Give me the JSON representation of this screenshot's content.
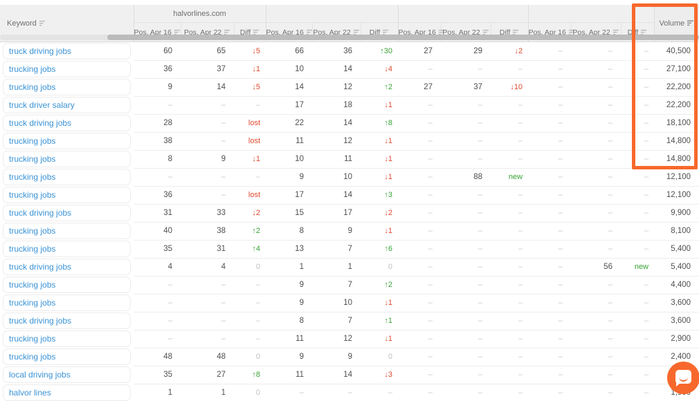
{
  "header": {
    "keyword_label": "Keyword",
    "volume_label": "Volume",
    "group_domains": [
      "halvorlines.com",
      "",
      "",
      ""
    ],
    "sub_columns": [
      "Pos. Apr 16",
      "Pos. Apr 22",
      "Diff"
    ]
  },
  "rows": [
    {
      "keyword": "truck driving jobs",
      "cells": [
        "60",
        "65",
        "↓5",
        "66",
        "36",
        "↑30",
        "27",
        "29",
        "↓2",
        "–",
        "–",
        "–"
      ],
      "volume": "40,500"
    },
    {
      "keyword": "trucking jobs",
      "cells": [
        "36",
        "37",
        "↓1",
        "10",
        "14",
        "↓4",
        "–",
        "–",
        "–",
        "–",
        "–",
        "–"
      ],
      "volume": "27,100"
    },
    {
      "keyword": "trucking jobs",
      "cells": [
        "9",
        "14",
        "↓5",
        "14",
        "12",
        "↑2",
        "27",
        "37",
        "↓10",
        "–",
        "–",
        "–"
      ],
      "volume": "22,200"
    },
    {
      "keyword": "truck driver salary",
      "cells": [
        "–",
        "–",
        "–",
        "17",
        "18",
        "↓1",
        "–",
        "–",
        "–",
        "–",
        "–",
        "–"
      ],
      "volume": "22,200"
    },
    {
      "keyword": "truck driving jobs",
      "cells": [
        "28",
        "–",
        "lost",
        "22",
        "14",
        "↑8",
        "–",
        "–",
        "–",
        "–",
        "–",
        "–"
      ],
      "volume": "18,100"
    },
    {
      "keyword": "trucking jobs",
      "cells": [
        "38",
        "–",
        "lost",
        "11",
        "12",
        "↓1",
        "–",
        "–",
        "–",
        "–",
        "–",
        "–"
      ],
      "volume": "14,800"
    },
    {
      "keyword": "trucking jobs",
      "cells": [
        "8",
        "9",
        "↓1",
        "10",
        "11",
        "↓1",
        "–",
        "–",
        "–",
        "–",
        "–",
        "–"
      ],
      "volume": "14,800"
    },
    {
      "keyword": "trucking jobs",
      "cells": [
        "–",
        "–",
        "–",
        "9",
        "10",
        "↓1",
        "–",
        "88",
        "new",
        "–",
        "–",
        "–"
      ],
      "volume": "12,100"
    },
    {
      "keyword": "trucking jobs",
      "cells": [
        "36",
        "–",
        "lost",
        "17",
        "14",
        "↑3",
        "–",
        "–",
        "–",
        "–",
        "–",
        "–"
      ],
      "volume": "12,100"
    },
    {
      "keyword": "truck driving jobs",
      "cells": [
        "31",
        "33",
        "↓2",
        "15",
        "17",
        "↓2",
        "–",
        "–",
        "–",
        "–",
        "–",
        "–"
      ],
      "volume": "9,900"
    },
    {
      "keyword": "trucking jobs",
      "cells": [
        "40",
        "38",
        "↑2",
        "8",
        "9",
        "↓1",
        "–",
        "–",
        "–",
        "–",
        "–",
        "–"
      ],
      "volume": "8,100"
    },
    {
      "keyword": "trucking jobs",
      "cells": [
        "35",
        "31",
        "↑4",
        "13",
        "7",
        "↑6",
        "–",
        "–",
        "–",
        "–",
        "–",
        "–"
      ],
      "volume": "5,400"
    },
    {
      "keyword": "truck driving jobs",
      "cells": [
        "4",
        "4",
        "0",
        "1",
        "1",
        "0",
        "–",
        "–",
        "–",
        "–",
        "56",
        "new"
      ],
      "volume": "5,400"
    },
    {
      "keyword": "trucking jobs",
      "cells": [
        "–",
        "–",
        "–",
        "9",
        "7",
        "↑2",
        "–",
        "–",
        "–",
        "–",
        "–",
        "–"
      ],
      "volume": "4,400"
    },
    {
      "keyword": "trucking jobs",
      "cells": [
        "–",
        "–",
        "–",
        "9",
        "10",
        "↓1",
        "–",
        "–",
        "–",
        "–",
        "–",
        "–"
      ],
      "volume": "3,600"
    },
    {
      "keyword": "truck driving jobs",
      "cells": [
        "–",
        "–",
        "–",
        "8",
        "7",
        "↑1",
        "–",
        "–",
        "–",
        "–",
        "–",
        "–"
      ],
      "volume": "3,600"
    },
    {
      "keyword": "trucking jobs",
      "cells": [
        "–",
        "–",
        "–",
        "11",
        "12",
        "↓1",
        "–",
        "–",
        "–",
        "–",
        "–",
        "–"
      ],
      "volume": "2,900"
    },
    {
      "keyword": "trucking jobs",
      "cells": [
        "48",
        "48",
        "0",
        "9",
        "9",
        "0",
        "–",
        "–",
        "–",
        "–",
        "–",
        "–"
      ],
      "volume": "2,400"
    },
    {
      "keyword": "local driving jobs",
      "cells": [
        "35",
        "27",
        "↑8",
        "11",
        "14",
        "↓3",
        "–",
        "–",
        "–",
        "–",
        "–",
        "–"
      ],
      "volume": ""
    },
    {
      "keyword": "halvor lines",
      "cells": [
        "1",
        "1",
        "0",
        "–",
        "–",
        "–",
        "–",
        "–",
        "–",
        "–",
        "–",
        "–"
      ],
      "volume": "1,900"
    }
  ],
  "colors": {
    "accent_orange": "#f8682c",
    "link_blue": "#3a93d6",
    "diff_red": "#e0482e",
    "diff_green": "#39a335",
    "header_bg": "#f0f0f1"
  }
}
